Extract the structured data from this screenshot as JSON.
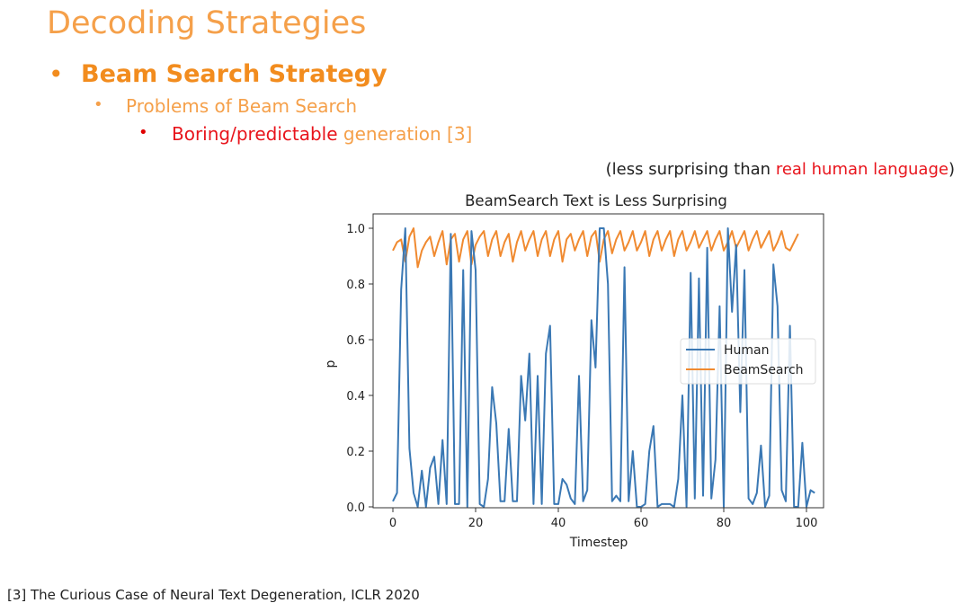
{
  "slide": {
    "title": "Decoding Strategies",
    "bullet1": "Beam Search Strategy",
    "bullet2": "Problems of Beam Search",
    "bullet3_red": "Boring/predictable",
    "bullet3_rest": " generation [3]",
    "note_prefix": "(less surprising than ",
    "note_red": "real human language",
    "note_suffix": ")",
    "footnote": "[3] The Curious Case of Neural Text Degeneration, ICLR 2020",
    "bullet_glyph": "•"
  },
  "colors": {
    "human": "#3A78B4",
    "beam": "#F08A30",
    "orange_text": "#F5A04A",
    "red_text": "#e8141c"
  },
  "chart_data": {
    "type": "line",
    "title": "BeamSearch Text is Less Surprising",
    "xlabel": "Timestep",
    "ylabel": "p",
    "xlim": [
      -5,
      104
    ],
    "ylim": [
      0,
      1.04
    ],
    "xticks": [
      0,
      20,
      40,
      60,
      80,
      100
    ],
    "yticks": [
      0.0,
      0.2,
      0.4,
      0.6,
      0.8,
      1.0
    ],
    "ytick_labels": [
      "0.0",
      "0.2",
      "0.4",
      "0.6",
      "0.8",
      "1.0"
    ],
    "legend_position": "center-right",
    "series": [
      {
        "name": "Human",
        "values": [
          0.02,
          0.05,
          0.78,
          1.0,
          0.21,
          0.05,
          0.0,
          0.13,
          0.0,
          0.14,
          0.18,
          0.01,
          0.24,
          0.01,
          0.98,
          0.01,
          0.01,
          0.85,
          0.0,
          0.99,
          0.85,
          0.01,
          0.0,
          0.1,
          0.43,
          0.3,
          0.02,
          0.02,
          0.28,
          0.02,
          0.02,
          0.47,
          0.31,
          0.55,
          0.01,
          0.47,
          0.01,
          0.55,
          0.65,
          0.01,
          0.01,
          0.1,
          0.08,
          0.03,
          0.01,
          0.47,
          0.02,
          0.06,
          0.67,
          0.5,
          1.0,
          1.0,
          0.8,
          0.02,
          0.04,
          0.02,
          0.86,
          0.02,
          0.2,
          0.0,
          0.0,
          0.01,
          0.2,
          0.29,
          0.0,
          0.01,
          0.01,
          0.01,
          0.0,
          0.1,
          0.4,
          0.0,
          0.84,
          0.03,
          0.82,
          0.04,
          0.93,
          0.03,
          0.17,
          0.72,
          0.0,
          1.0,
          0.7,
          0.94,
          0.34,
          0.85,
          0.03,
          0.01,
          0.05,
          0.22,
          0.0,
          0.04,
          0.87,
          0.72,
          0.06,
          0.02,
          0.65,
          0.0,
          0.0,
          0.23,
          0.0,
          0.06,
          0.05
        ]
      },
      {
        "name": "BeamSearch",
        "values": [
          0.92,
          0.95,
          0.96,
          0.88,
          0.97,
          1.0,
          0.86,
          0.92,
          0.95,
          0.97,
          0.9,
          0.95,
          0.99,
          0.87,
          0.96,
          0.98,
          0.88,
          0.96,
          0.99,
          0.87,
          0.94,
          0.97,
          0.99,
          0.9,
          0.96,
          0.99,
          0.9,
          0.95,
          0.98,
          0.88,
          0.95,
          0.99,
          0.92,
          0.96,
          0.99,
          0.9,
          0.96,
          0.99,
          0.9,
          0.96,
          0.99,
          0.88,
          0.96,
          0.98,
          0.92,
          0.96,
          0.99,
          0.9,
          0.97,
          0.99,
          0.88,
          0.96,
          0.99,
          0.91,
          0.96,
          0.99,
          0.92,
          0.95,
          0.99,
          0.92,
          0.95,
          0.99,
          0.9,
          0.96,
          0.99,
          0.92,
          0.96,
          0.99,
          0.9,
          0.96,
          0.99,
          0.92,
          0.95,
          0.99,
          0.93,
          0.96,
          0.99,
          0.92,
          0.96,
          0.99,
          0.92,
          0.95,
          0.99,
          0.93,
          0.96,
          0.99,
          0.92,
          0.96,
          0.99,
          0.93,
          0.96,
          0.99,
          0.92,
          0.95,
          0.99,
          0.93,
          0.92,
          0.95,
          0.98
        ]
      }
    ]
  }
}
